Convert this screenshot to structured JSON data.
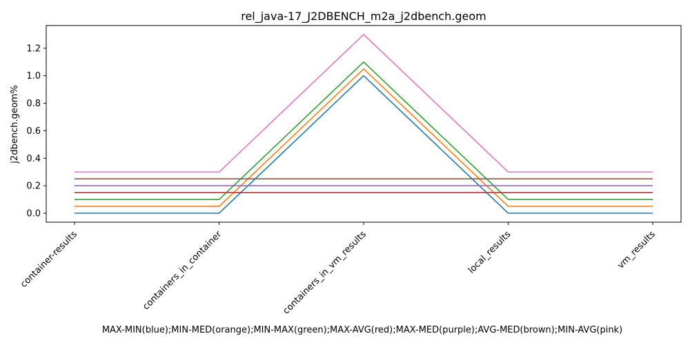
{
  "chart_data": {
    "type": "line",
    "title": "rel_java-17_J2DBENCH_m2a_j2dbench.geom",
    "xlabel": "MAX-MIN(blue);MIN-MED(orange);MIN-MAX(green);MAX-AVG(red);MAX-MED(purple);AVG-MED(brown);MIN-AVG(pink)",
    "ylabel": "j2dbench.geom%",
    "categories": [
      "container-results",
      "containers_in_container",
      "containers_in_vm_results",
      "local_results",
      "vm_results"
    ],
    "ylim": [
      -0.065,
      1.365
    ],
    "yticks": [
      0.0,
      0.2,
      0.4,
      0.6,
      0.8,
      1.0,
      1.2
    ],
    "ytick_labels": [
      "0.0",
      "0.2",
      "0.4",
      "0.6",
      "0.8",
      "1.0",
      "1.2"
    ],
    "grid": false,
    "series": [
      {
        "color": "#1f77b4",
        "values": [
          0.0,
          0.0,
          1.0,
          0.0,
          0.0
        ]
      },
      {
        "color": "#ff7f0e",
        "values": [
          0.05,
          0.05,
          1.05,
          0.05,
          0.05
        ]
      },
      {
        "color": "#2ca02c",
        "values": [
          0.1,
          0.1,
          1.1,
          0.1,
          0.1
        ]
      },
      {
        "color": "#d62728",
        "values": [
          0.15,
          0.15,
          0.15,
          0.15,
          0.15
        ]
      },
      {
        "color": "#9467bd",
        "values": [
          0.2,
          0.2,
          0.2,
          0.2,
          0.2
        ]
      },
      {
        "color": "#8c564b",
        "values": [
          0.25,
          0.25,
          0.25,
          0.25,
          0.25
        ]
      },
      {
        "color": "#e377c2",
        "values": [
          0.3,
          0.3,
          1.3,
          0.3,
          0.3
        ]
      }
    ]
  }
}
